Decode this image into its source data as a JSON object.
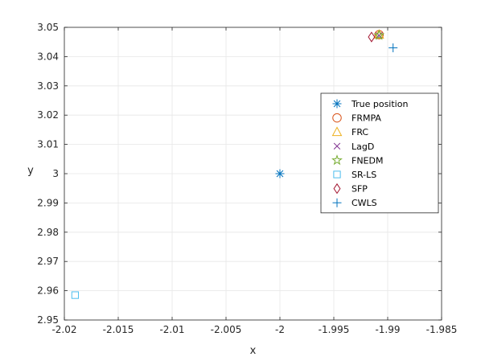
{
  "chart_data": {
    "type": "scatter",
    "title": "",
    "xlabel": "x",
    "ylabel": "y",
    "xlim": [
      -2.02,
      -1.985
    ],
    "ylim": [
      2.95,
      3.05
    ],
    "xticks": [
      -2.02,
      -2.015,
      -2.01,
      -2.005,
      -2,
      -1.995,
      -1.99,
      -1.985
    ],
    "yticks": [
      2.95,
      2.96,
      2.97,
      2.98,
      2.99,
      3,
      3.01,
      3.02,
      3.03,
      3.04,
      3.05
    ],
    "xtick_labels": [
      "-2.02",
      "-2.015",
      "-2.01",
      "-2.005",
      "-2",
      "-1.995",
      "-1.99",
      "-1.985"
    ],
    "ytick_labels": [
      "2.95",
      "2.96",
      "2.97",
      "2.98",
      "2.99",
      "3",
      "3.01",
      "3.02",
      "3.03",
      "3.04",
      "3.05"
    ],
    "grid": true,
    "legend_position": "right",
    "series": [
      {
        "name": "True position",
        "marker": "asterisk",
        "color": "#0072BD",
        "x": [
          -2.0
        ],
        "y": [
          3.0
        ]
      },
      {
        "name": "FRMPA",
        "marker": "circle",
        "color": "#D95319",
        "x": [
          -1.9908
        ],
        "y": [
          3.0475
        ]
      },
      {
        "name": "FRC",
        "marker": "triangle",
        "color": "#EDB120",
        "x": [
          -1.9908
        ],
        "y": [
          3.0475
        ]
      },
      {
        "name": "LagD",
        "marker": "x",
        "color": "#7E2F8E",
        "x": [
          -1.9908
        ],
        "y": [
          3.0472
        ]
      },
      {
        "name": "FNEDM",
        "marker": "pentagram",
        "color": "#77AC30",
        "x": [
          -1.9908
        ],
        "y": [
          3.0473
        ]
      },
      {
        "name": "SR-LS",
        "marker": "square",
        "color": "#4DBEEE",
        "x": [
          -2.019
        ],
        "y": [
          2.9585
        ]
      },
      {
        "name": "SFP",
        "marker": "diamond",
        "color": "#A2142F",
        "x": [
          -1.9915
        ],
        "y": [
          3.0467
        ]
      },
      {
        "name": "CWLS",
        "marker": "plus",
        "color": "#0072BD",
        "x": [
          -1.9895
        ],
        "y": [
          3.043
        ]
      }
    ]
  }
}
